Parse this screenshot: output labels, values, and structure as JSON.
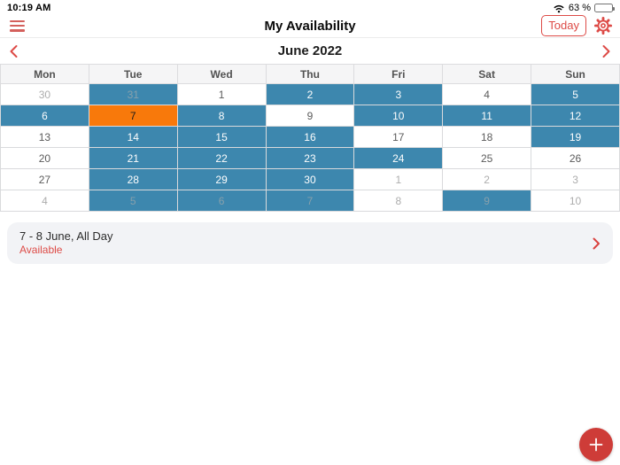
{
  "status_bar": {
    "time": "10:19 AM",
    "battery_percent": "63 %"
  },
  "nav": {
    "title": "My Availability",
    "today_label": "Today"
  },
  "month_nav": {
    "label": "June 2022"
  },
  "calendar": {
    "day_headers": [
      "Mon",
      "Tue",
      "Wed",
      "Thu",
      "Fri",
      "Sat",
      "Sun"
    ],
    "weeks": [
      [
        {
          "day": "30",
          "state": "adj"
        },
        {
          "day": "31",
          "state": "sel-adj"
        },
        {
          "day": "1",
          "state": "cur"
        },
        {
          "day": "2",
          "state": "sel"
        },
        {
          "day": "3",
          "state": "sel"
        },
        {
          "day": "4",
          "state": "cur"
        },
        {
          "day": "5",
          "state": "sel"
        }
      ],
      [
        {
          "day": "6",
          "state": "sel"
        },
        {
          "day": "7",
          "state": "today"
        },
        {
          "day": "8",
          "state": "sel"
        },
        {
          "day": "9",
          "state": "cur"
        },
        {
          "day": "10",
          "state": "sel"
        },
        {
          "day": "11",
          "state": "sel"
        },
        {
          "day": "12",
          "state": "sel"
        }
      ],
      [
        {
          "day": "13",
          "state": "cur"
        },
        {
          "day": "14",
          "state": "sel"
        },
        {
          "day": "15",
          "state": "sel"
        },
        {
          "day": "16",
          "state": "sel"
        },
        {
          "day": "17",
          "state": "cur"
        },
        {
          "day": "18",
          "state": "cur"
        },
        {
          "day": "19",
          "state": "sel"
        }
      ],
      [
        {
          "day": "20",
          "state": "cur"
        },
        {
          "day": "21",
          "state": "sel"
        },
        {
          "day": "22",
          "state": "sel"
        },
        {
          "day": "23",
          "state": "sel"
        },
        {
          "day": "24",
          "state": "sel"
        },
        {
          "day": "25",
          "state": "cur"
        },
        {
          "day": "26",
          "state": "cur"
        }
      ],
      [
        {
          "day": "27",
          "state": "cur"
        },
        {
          "day": "28",
          "state": "sel"
        },
        {
          "day": "29",
          "state": "sel"
        },
        {
          "day": "30",
          "state": "sel"
        },
        {
          "day": "1",
          "state": "adj"
        },
        {
          "day": "2",
          "state": "adj"
        },
        {
          "day": "3",
          "state": "adj"
        }
      ],
      [
        {
          "day": "4",
          "state": "adj"
        },
        {
          "day": "5",
          "state": "sel-adj"
        },
        {
          "day": "6",
          "state": "sel-adj"
        },
        {
          "day": "7",
          "state": "sel-adj"
        },
        {
          "day": "8",
          "state": "adj"
        },
        {
          "day": "9",
          "state": "sel-adj"
        },
        {
          "day": "10",
          "state": "adj"
        }
      ]
    ]
  },
  "event": {
    "title": "7 - 8 June, All Day",
    "status": "Available"
  },
  "icons": {
    "hamburger": "menu-icon",
    "wifi": "wifi-icon",
    "battery": "battery-icon",
    "gear": "settings-gear-icon",
    "chevron_left": "chevron-left-icon",
    "chevron_right": "chevron-right-icon",
    "event_chevron": "chevron-right-icon",
    "fab_plus": "plus-icon"
  },
  "colors": {
    "accent_red": "#dd4b47",
    "selected_teal": "#3d87ae",
    "today_orange": "#f8790b",
    "fab_red": "#ce3c38",
    "card_bg": "#f2f3f6"
  }
}
